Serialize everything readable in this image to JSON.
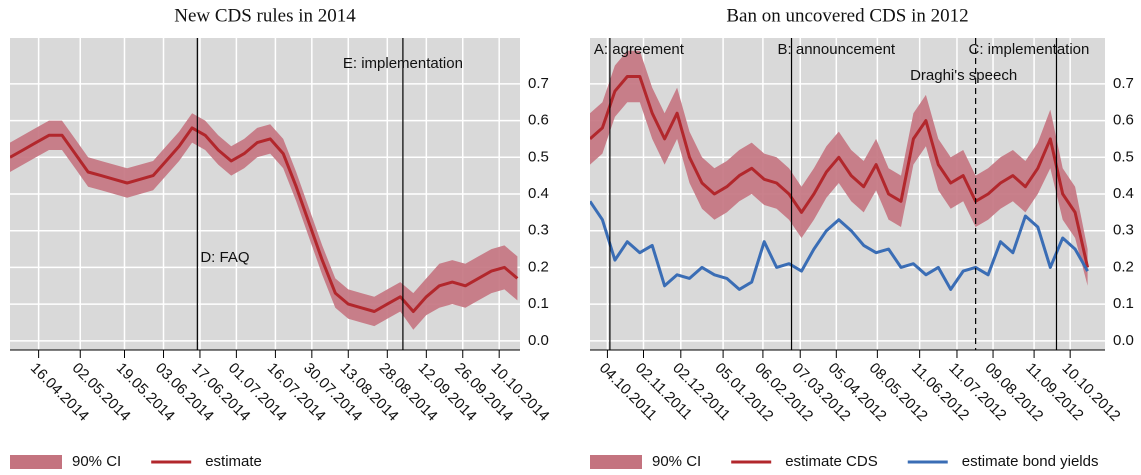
{
  "chart_data": [
    {
      "type": "line",
      "title": "New CDS rules in 2014",
      "x": [
        "05.04.2014",
        "10.04.2014",
        "15.04.2014",
        "20.04.2014",
        "25.04.2014",
        "30.04.2014",
        "05.05.2014",
        "10.05.2014",
        "15.05.2014",
        "20.05.2014",
        "25.05.2014",
        "30.05.2014",
        "04.06.2014",
        "09.06.2014",
        "14.06.2014",
        "19.06.2014",
        "24.06.2014",
        "29.06.2014",
        "04.07.2014",
        "09.07.2014",
        "14.07.2014",
        "19.07.2014",
        "24.07.2014",
        "29.07.2014",
        "03.08.2014",
        "08.08.2014",
        "13.08.2014",
        "18.08.2014",
        "23.08.2014",
        "28.08.2014",
        "02.09.2014",
        "07.09.2014",
        "12.09.2014",
        "17.09.2014",
        "22.09.2014",
        "27.09.2014",
        "02.10.2014",
        "07.10.2014",
        "12.10.2014",
        "17.10.2014"
      ],
      "series": [
        {
          "name": "90% CI",
          "color": "#c4737f",
          "lower": [
            0.46,
            0.48,
            0.5,
            0.52,
            0.52,
            0.47,
            0.42,
            0.41,
            0.4,
            0.39,
            0.4,
            0.41,
            0.45,
            0.49,
            0.54,
            0.52,
            0.48,
            0.45,
            0.47,
            0.5,
            0.51,
            0.47,
            0.38,
            0.28,
            0.18,
            0.09,
            0.06,
            0.05,
            0.04,
            0.06,
            0.08,
            0.03,
            0.07,
            0.09,
            0.1,
            0.09,
            0.11,
            0.13,
            0.14,
            0.11
          ],
          "upper": [
            0.54,
            0.56,
            0.58,
            0.6,
            0.6,
            0.55,
            0.5,
            0.49,
            0.48,
            0.47,
            0.48,
            0.49,
            0.53,
            0.57,
            0.62,
            0.6,
            0.56,
            0.53,
            0.55,
            0.58,
            0.59,
            0.55,
            0.46,
            0.36,
            0.26,
            0.17,
            0.14,
            0.13,
            0.12,
            0.14,
            0.16,
            0.13,
            0.17,
            0.21,
            0.22,
            0.21,
            0.23,
            0.25,
            0.26,
            0.23
          ]
        },
        {
          "name": "estimate",
          "color": "#b2272c",
          "values": [
            0.5,
            0.52,
            0.54,
            0.56,
            0.56,
            0.51,
            0.46,
            0.45,
            0.44,
            0.43,
            0.44,
            0.45,
            0.49,
            0.53,
            0.58,
            0.56,
            0.52,
            0.49,
            0.51,
            0.54,
            0.55,
            0.51,
            0.42,
            0.32,
            0.22,
            0.13,
            0.1,
            0.09,
            0.08,
            0.1,
            0.12,
            0.08,
            0.12,
            0.15,
            0.16,
            0.15,
            0.17,
            0.19,
            0.2,
            0.17
          ]
        }
      ],
      "xlim": [
        "05.04.2014",
        "18.10.2014"
      ],
      "xticks": [
        "16.04.2014",
        "02.05.2014",
        "19.05.2014",
        "03.06.2014",
        "17.06.2014",
        "01.07.2014",
        "16.07.2014",
        "30.07.2014",
        "13.08.2014",
        "28.08.2014",
        "12.09.2014",
        "26.09.2014",
        "10.10.2014"
      ],
      "ylim": [
        -0.025,
        0.825
      ],
      "yticks": [
        {
          "value": 0,
          "label": "0.0"
        },
        0.1,
        0.2,
        0.3,
        0.4,
        0.5,
        0.6,
        0.7
      ],
      "grid": true,
      "annotations": [
        {
          "x": "16.06.2014",
          "label": "D: FAQ",
          "linestyle": "solid"
        },
        {
          "x": "03.09.2014",
          "label": "E: implementation",
          "linestyle": "solid"
        }
      ]
    },
    {
      "type": "line",
      "title": "Ban on uncovered CDS in 2012",
      "x": [
        "20.09.2011",
        "30.09.2011",
        "10.10.2011",
        "20.10.2011",
        "30.10.2011",
        "09.11.2011",
        "19.11.2011",
        "29.11.2011",
        "09.12.2011",
        "19.12.2011",
        "29.12.2011",
        "08.01.2012",
        "18.01.2012",
        "28.01.2012",
        "07.02.2012",
        "17.02.2012",
        "27.02.2012",
        "08.03.2012",
        "18.03.2012",
        "28.03.2012",
        "07.04.2012",
        "17.04.2012",
        "27.04.2012",
        "07.05.2012",
        "17.05.2012",
        "27.05.2012",
        "06.06.2012",
        "16.06.2012",
        "26.06.2012",
        "06.07.2012",
        "16.07.2012",
        "26.07.2012",
        "05.08.2012",
        "15.08.2012",
        "25.08.2012",
        "04.09.2012",
        "14.09.2012",
        "24.09.2012",
        "04.10.2012",
        "14.10.2012",
        "24.10.2012"
      ],
      "series": [
        {
          "name": "90% CI",
          "color": "#c4737f",
          "lower": [
            0.48,
            0.51,
            0.61,
            0.65,
            0.65,
            0.55,
            0.48,
            0.55,
            0.43,
            0.36,
            0.33,
            0.35,
            0.38,
            0.4,
            0.37,
            0.36,
            0.33,
            0.28,
            0.33,
            0.39,
            0.43,
            0.38,
            0.35,
            0.41,
            0.33,
            0.31,
            0.48,
            0.53,
            0.41,
            0.36,
            0.38,
            0.31,
            0.33,
            0.36,
            0.38,
            0.35,
            0.4,
            0.47,
            0.33,
            0.28,
            0.15
          ],
          "upper": [
            0.62,
            0.65,
            0.75,
            0.79,
            0.79,
            0.69,
            0.62,
            0.69,
            0.57,
            0.5,
            0.47,
            0.49,
            0.52,
            0.54,
            0.51,
            0.5,
            0.47,
            0.42,
            0.47,
            0.53,
            0.57,
            0.52,
            0.49,
            0.55,
            0.47,
            0.45,
            0.62,
            0.67,
            0.55,
            0.5,
            0.52,
            0.45,
            0.47,
            0.5,
            0.52,
            0.49,
            0.54,
            0.63,
            0.47,
            0.42,
            0.25
          ]
        },
        {
          "name": "estimate CDS",
          "color": "#b2272c",
          "values": [
            0.55,
            0.58,
            0.68,
            0.72,
            0.72,
            0.62,
            0.55,
            0.62,
            0.5,
            0.43,
            0.4,
            0.42,
            0.45,
            0.47,
            0.44,
            0.43,
            0.4,
            0.35,
            0.4,
            0.46,
            0.5,
            0.45,
            0.42,
            0.48,
            0.4,
            0.38,
            0.55,
            0.6,
            0.48,
            0.43,
            0.45,
            0.38,
            0.4,
            0.43,
            0.45,
            0.42,
            0.47,
            0.55,
            0.4,
            0.35,
            0.2
          ]
        },
        {
          "name": "estimate bond yields",
          "color": "#3a6db5",
          "values": [
            0.38,
            0.33,
            0.22,
            0.27,
            0.24,
            0.26,
            0.15,
            0.18,
            0.17,
            0.2,
            0.18,
            0.17,
            0.14,
            0.16,
            0.27,
            0.2,
            0.21,
            0.19,
            0.25,
            0.3,
            0.33,
            0.3,
            0.26,
            0.24,
            0.25,
            0.2,
            0.21,
            0.18,
            0.2,
            0.14,
            0.19,
            0.2,
            0.18,
            0.27,
            0.24,
            0.34,
            0.31,
            0.2,
            0.28,
            0.25,
            0.19
          ]
        }
      ],
      "xlim": [
        "20.09.2011",
        "07.11.2012"
      ],
      "xticks": [
        "04.10.2011",
        "02.11.2011",
        "02.12.2011",
        "05.01.2012",
        "06.02.2012",
        "07.03.2012",
        "05.04.2012",
        "08.05.2012",
        "11.06.2012",
        "11.07.2012",
        "09.08.2012",
        "11.09.2012",
        "10.10.2012"
      ],
      "ylim": [
        -0.025,
        0.825
      ],
      "yticks": [
        {
          "value": 0,
          "label": "0.0"
        },
        0.1,
        0.2,
        0.3,
        0.4,
        0.5,
        0.6,
        0.7
      ],
      "grid": true,
      "annotations": [
        {
          "x": "06.10.2011",
          "label": "A: agreement",
          "linestyle": "solid"
        },
        {
          "x": "29.02.2012",
          "label": "B: announcement",
          "linestyle": "solid"
        },
        {
          "x": "26.07.2012",
          "label": "Draghi's speech",
          "linestyle": "dashed"
        },
        {
          "x": "29.09.2012",
          "label": "C: implementation",
          "linestyle": "solid"
        }
      ]
    }
  ]
}
